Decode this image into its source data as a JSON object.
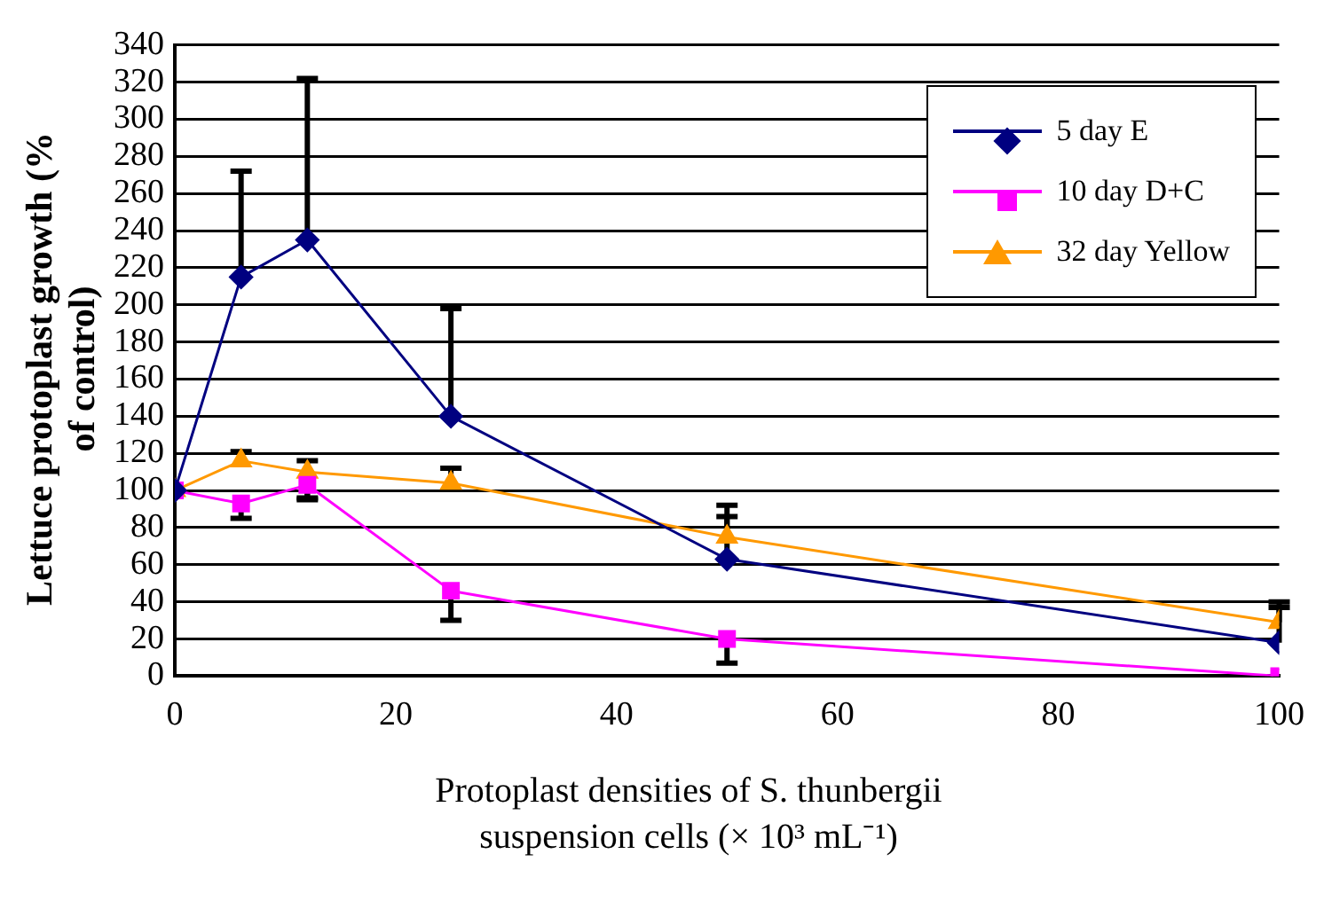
{
  "chart_data": {
    "type": "line",
    "xlabel": "Protoplast densities of S. thunbergii suspension cells (× 10³ mL⁻¹)",
    "ylabel": "Lettuce protoplast growth (% of control)",
    "x": [
      0,
      6,
      12,
      25,
      50,
      100
    ],
    "series": [
      {
        "name": "5 day E",
        "color": "#000080",
        "marker": "diamond",
        "values": [
          100,
          215,
          235,
          140,
          63,
          18
        ],
        "errors": [
          null,
          [
            215,
            272
          ],
          [
            235,
            322
          ],
          [
            140,
            198
          ],
          [
            63,
            92
          ],
          [
            18,
            40
          ]
        ]
      },
      {
        "name": "10 day D+C",
        "color": "#ff00ff",
        "marker": "square",
        "values": [
          100,
          93,
          103,
          46,
          20,
          0
        ],
        "errors": [
          null,
          [
            85,
            93
          ],
          [
            95,
            103
          ],
          [
            30,
            46
          ],
          [
            7,
            20
          ],
          null
        ]
      },
      {
        "name": "32 day Yellow",
        "color": "#ff9900",
        "marker": "triangle",
        "values": [
          100,
          116,
          110,
          104,
          75,
          29
        ],
        "errors": [
          null,
          [
            116,
            121
          ],
          [
            96,
            116
          ],
          [
            104,
            112
          ],
          [
            75,
            86
          ],
          [
            29,
            37
          ]
        ]
      }
    ],
    "xlim": [
      0,
      100
    ],
    "xticks": [
      0,
      20,
      40,
      60,
      80,
      100
    ],
    "ylim": [
      0,
      340
    ],
    "yticks": [
      0,
      20,
      40,
      60,
      80,
      100,
      120,
      140,
      160,
      180,
      200,
      220,
      240,
      260,
      280,
      300,
      320,
      340
    ],
    "grid": "y",
    "legend": "top right"
  }
}
